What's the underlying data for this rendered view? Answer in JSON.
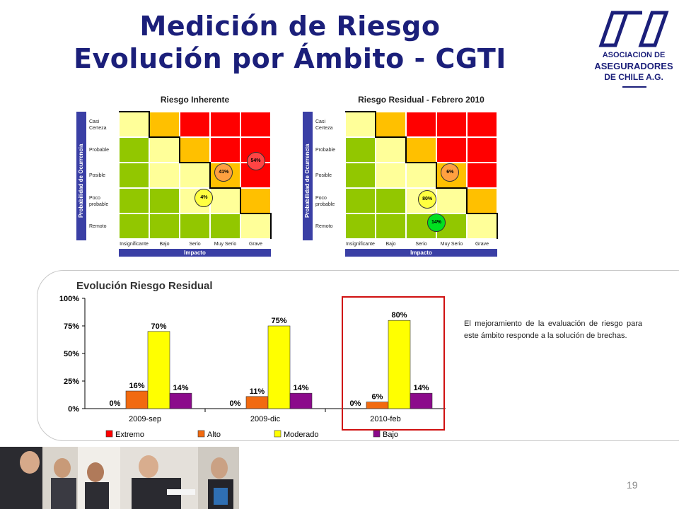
{
  "header": {
    "title_line1": "Medición de Riesgo",
    "title_line2": "Evolución por Ámbito - CGTI"
  },
  "logo": {
    "line1": "ASOCIACION DE",
    "line2": "ASEGURADORES",
    "line3": "DE CHILE A.G."
  },
  "matrix_common": {
    "y_axis_label": "Probabilidad de Ocurrencia",
    "x_axis_label": "Impacto",
    "rows": [
      "Casi Certeza",
      "Probable",
      "Posible",
      "Poco probable",
      "Remoto"
    ],
    "cols": [
      "Insignificante",
      "Bajo",
      "Serio",
      "Muy Serio",
      "Grave"
    ],
    "cell_colors": [
      [
        "#ffff99",
        "#ffc000",
        "#ff0000",
        "#ff0000",
        "#ff0000"
      ],
      [
        "#92c700",
        "#ffff99",
        "#ffc000",
        "#ff0000",
        "#ff0000"
      ],
      [
        "#92c700",
        "#ffff99",
        "#ffff99",
        "#ffc000",
        "#ff0000"
      ],
      [
        "#92c700",
        "#92c700",
        "#ffff99",
        "#ffff99",
        "#ffc000"
      ],
      [
        "#92c700",
        "#92c700",
        "#92c700",
        "#92c700",
        "#ffff99"
      ]
    ]
  },
  "matrix_inherent": {
    "title": "Riesgo Inherente",
    "bubbles": [
      {
        "label": "54%",
        "row": 1.95,
        "col": 4.5,
        "color": "#ff4444"
      },
      {
        "label": "41%",
        "row": 2.4,
        "col": 3.45,
        "color": "#ffa040"
      },
      {
        "label": "4%",
        "row": 3.4,
        "col": 2.8,
        "color": "#ffff40"
      }
    ]
  },
  "matrix_residual": {
    "title": "Riesgo Residual - Febrero 2010",
    "bubbles": [
      {
        "label": "6%",
        "row": 2.4,
        "col": 3.45,
        "color": "#ffa040"
      },
      {
        "label": "80%",
        "row": 3.45,
        "col": 2.7,
        "color": "#ffff40"
      },
      {
        "label": "14%",
        "row": 4.35,
        "col": 3.0,
        "color": "#00e020"
      }
    ]
  },
  "chart_data": {
    "type": "bar",
    "title": "Evolución Riesgo Residual",
    "categories": [
      "2009-sep",
      "2009-dic",
      "2010-feb"
    ],
    "series": [
      {
        "name": "Extremo",
        "values": [
          0,
          0,
          0
        ],
        "color": "#ff0000"
      },
      {
        "name": "Alto",
        "values": [
          16,
          11,
          6
        ],
        "color": "#f26a10"
      },
      {
        "name": "Moderado",
        "values": [
          70,
          75,
          80
        ],
        "color": "#ffff00"
      },
      {
        "name": "Bajo",
        "values": [
          14,
          14,
          14
        ],
        "color": "#8b0a8b"
      }
    ],
    "y_ticks": [
      "0%",
      "25%",
      "50%",
      "75%",
      "100%"
    ],
    "ylim": [
      0,
      100
    ],
    "highlight_category": "2010-feb",
    "legend_position": "bottom"
  },
  "note": {
    "text": "El mejoramiento de la evaluación de riesgo para este ámbito responde a la solución de brechas."
  },
  "page_number": "19"
}
